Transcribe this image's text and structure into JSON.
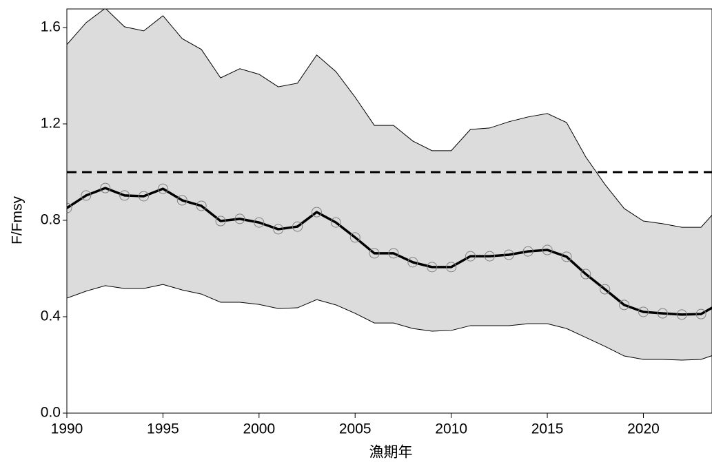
{
  "chart_data": {
    "type": "line",
    "x_label": "漁期年",
    "y_label": "F/Fmsy",
    "x": [
      1990,
      1991,
      1992,
      1993,
      1994,
      1995,
      1996,
      1997,
      1998,
      1999,
      2000,
      2001,
      2002,
      2003,
      2004,
      2005,
      2006,
      2007,
      2008,
      2009,
      2010,
      2011,
      2012,
      2013,
      2014,
      2015,
      2016,
      2017,
      2018,
      2019,
      2020,
      2021,
      2022,
      2023,
      2024
    ],
    "series": [
      {
        "color": "#000000",
        "marker_color": "#808080",
        "values": [
          0.851,
          0.903,
          0.934,
          0.903,
          0.9,
          0.931,
          0.883,
          0.86,
          0.797,
          0.806,
          0.791,
          0.763,
          0.774,
          0.834,
          0.791,
          0.729,
          0.663,
          0.663,
          0.626,
          0.606,
          0.606,
          0.651,
          0.651,
          0.657,
          0.671,
          0.677,
          0.649,
          0.577,
          0.514,
          0.449,
          0.42,
          0.414,
          0.409,
          0.411,
          0.457
        ]
      }
    ],
    "band": {
      "color": "#dcdcdc",
      "upper": [
        1.529,
        1.62,
        1.68,
        1.603,
        1.586,
        1.649,
        1.554,
        1.509,
        1.391,
        1.429,
        1.406,
        1.354,
        1.369,
        1.486,
        1.417,
        1.311,
        1.194,
        1.194,
        1.129,
        1.089,
        1.089,
        1.177,
        1.183,
        1.209,
        1.229,
        1.243,
        1.206,
        1.063,
        0.949,
        0.849,
        0.797,
        0.786,
        0.771,
        0.771,
        0.86
      ],
      "lower": [
        0.477,
        0.506,
        0.529,
        0.517,
        0.517,
        0.534,
        0.511,
        0.494,
        0.46,
        0.46,
        0.451,
        0.434,
        0.437,
        0.471,
        0.449,
        0.414,
        0.374,
        0.374,
        0.351,
        0.34,
        0.343,
        0.363,
        0.363,
        0.363,
        0.371,
        0.371,
        0.351,
        0.314,
        0.277,
        0.237,
        0.223,
        0.223,
        0.22,
        0.223,
        0.25
      ]
    },
    "reference_line": 1,
    "xlim": [
      1990,
      2023.57
    ],
    "xticks": [
      1990,
      1995,
      2000,
      2005,
      2010,
      2015,
      2020
    ],
    "ylim": [
      0,
      1.677
    ],
    "yticks": [
      {
        "value": 0,
        "label": "0.0"
      },
      0.4,
      0.8,
      1.2,
      1.6
    ]
  }
}
